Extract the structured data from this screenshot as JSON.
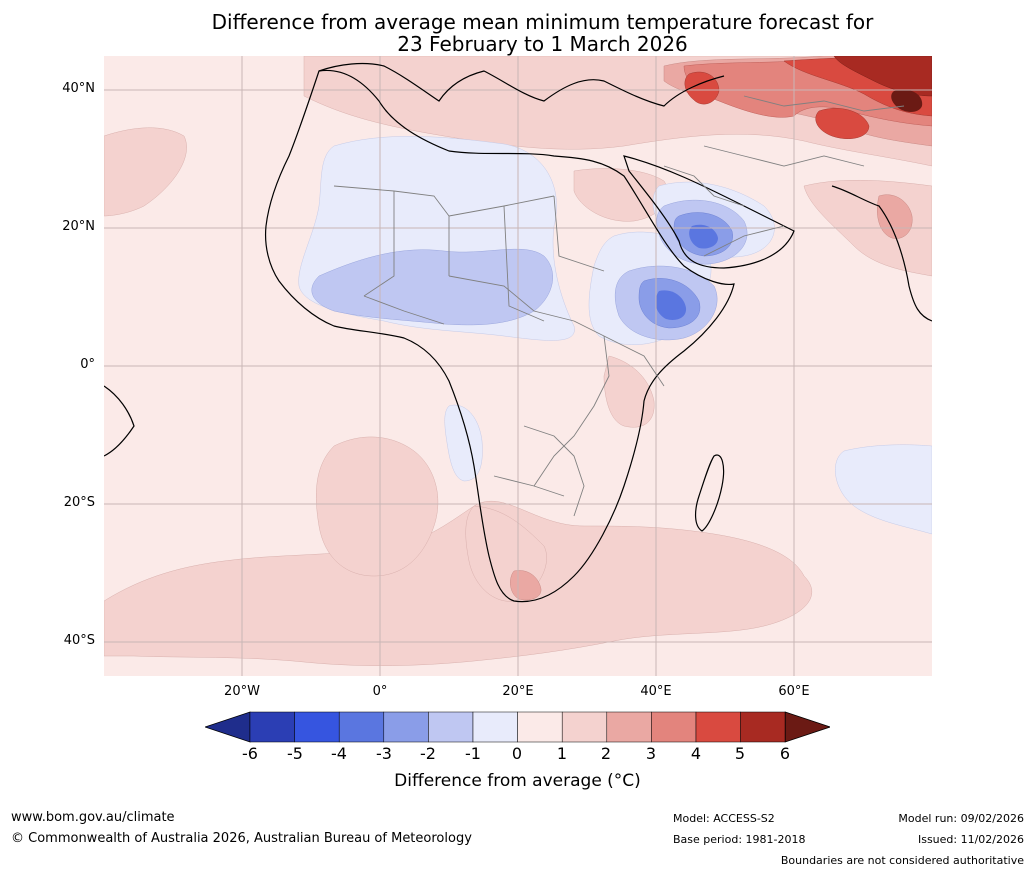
{
  "title": {
    "line1": "Difference from average mean minimum temperature forecast for",
    "line2": "23 February to 1 March 2026"
  },
  "map": {
    "lat_labels": [
      "40°N",
      "20°N",
      "0°",
      "20°S",
      "40°S"
    ],
    "lon_labels": [
      "20°W",
      "0°",
      "20°E",
      "40°E",
      "60°E"
    ],
    "bounds": {
      "lon_min": -40,
      "lon_max": 80,
      "lat_min": -45,
      "lat_max": 45
    }
  },
  "colorbar": {
    "ticks": [
      "-6",
      "-5",
      "-4",
      "-3",
      "-2",
      "-1",
      "0",
      "1",
      "2",
      "3",
      "4",
      "5",
      "6"
    ],
    "label": "Difference from average (°C)",
    "colors": [
      "#1f2d8c",
      "#2b3eb4",
      "#3655e0",
      "#5a76e0",
      "#8a9de8",
      "#bfc7f2",
      "#e8ebfb",
      "#fbeae8",
      "#f4d2cf",
      "#eaa8a3",
      "#e3847d",
      "#d94a40",
      "#a82a22",
      "#6b1a14"
    ]
  },
  "footer": {
    "website": "www.bom.gov.au/climate",
    "copyright": "© Commonwealth of Australia 2026, Australian Bureau of Meteorology",
    "model": "Model: ACCESS-S2",
    "base_period": "Base period: 1981-2018",
    "model_run": "Model run: 09/02/2026",
    "issued": "Issued: 11/02/2026",
    "disclaimer": "Boundaries are not considered authoritative"
  }
}
